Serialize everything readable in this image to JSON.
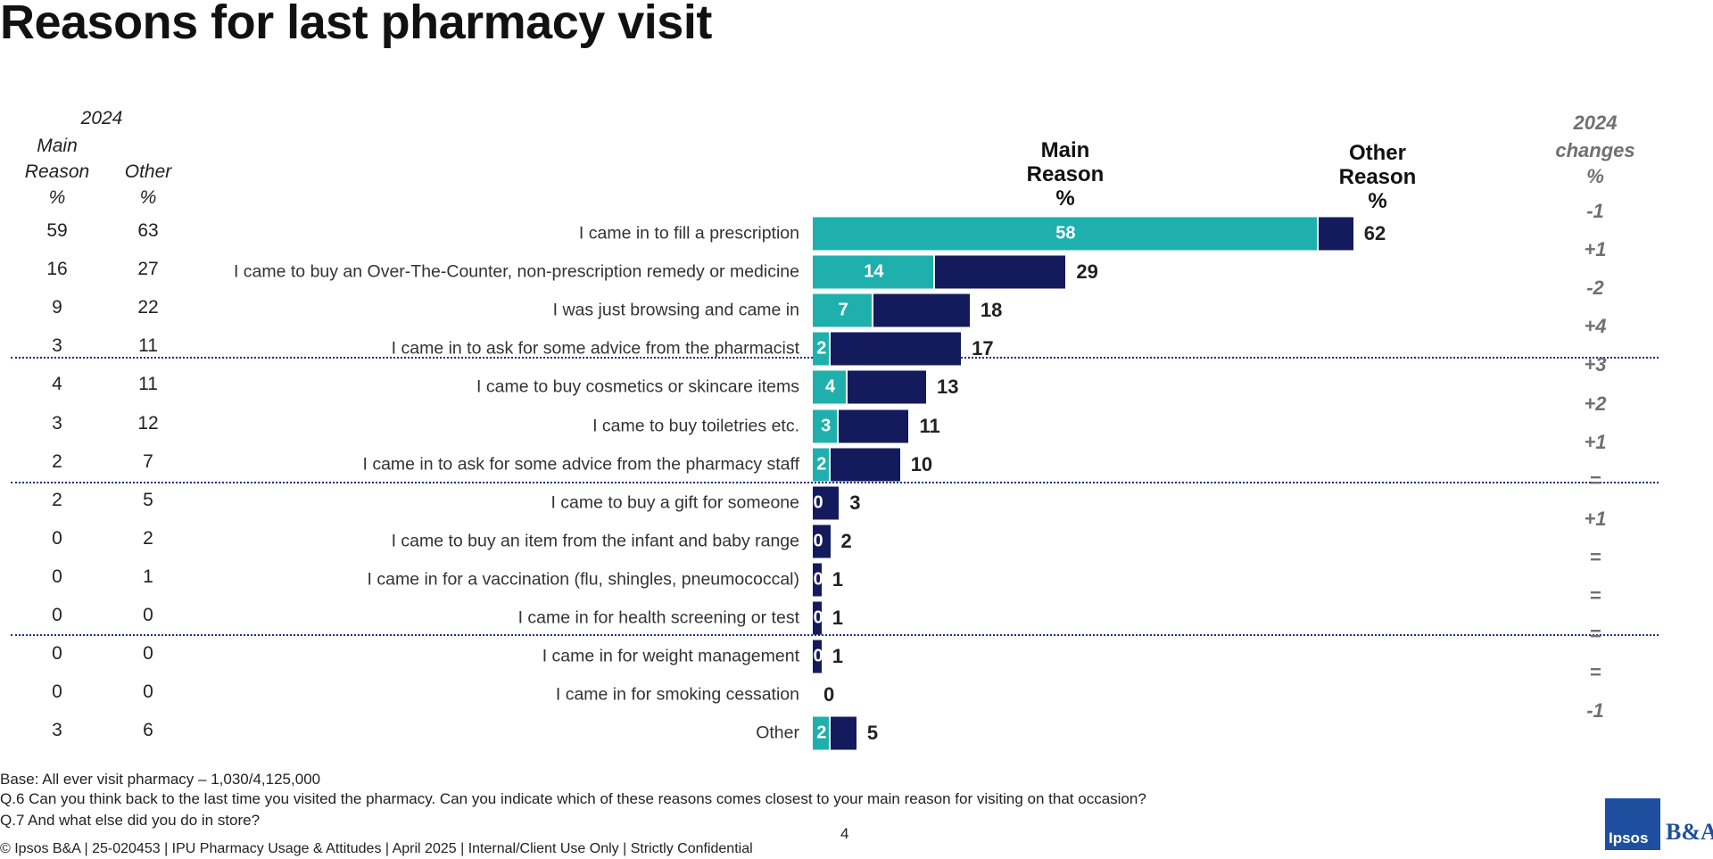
{
  "title": "Reasons for last pharmacy visit",
  "table_2024": {
    "header": "2024",
    "columns": [
      [
        "Main",
        "Reason",
        "%"
      ],
      [
        "Other",
        "%"
      ]
    ],
    "rows": [
      [
        59,
        63
      ],
      [
        16,
        27
      ],
      [
        9,
        22
      ],
      [
        3,
        11
      ],
      [
        4,
        11
      ],
      [
        3,
        12
      ],
      [
        2,
        7
      ],
      [
        2,
        5
      ],
      [
        0,
        2
      ],
      [
        0,
        1
      ],
      [
        0,
        0
      ],
      [
        0,
        0
      ],
      [
        0,
        0
      ],
      [
        3,
        6
      ]
    ]
  },
  "changes": {
    "header": [
      "2024",
      "changes",
      "%"
    ],
    "values": [
      "-1",
      "+1",
      "-2",
      "+4",
      "+3",
      "+2",
      "+1",
      "=",
      "+1",
      "=",
      "=",
      "=",
      "=",
      "-1"
    ]
  },
  "chart_data": {
    "type": "bar",
    "orientation": "horizontal",
    "unit": "%",
    "categories": [
      "I came in to fill a prescription",
      "I came to buy an Over-The-Counter, non-prescription remedy or medicine",
      "I was just browsing and came in",
      "I came in to ask for some advice from the pharmacist",
      "I came to buy cosmetics or skincare items",
      "I came to buy toiletries etc.",
      "I came in to ask for some advice from the pharmacy staff",
      "I came to buy a gift for someone",
      "I came to buy an item from the infant and baby range",
      "I came in for a vaccination (flu, shingles, pneumococcal)",
      "I came in for health screening or test",
      "I came in for weight management",
      "I came in for smoking cessation",
      "Other"
    ],
    "series": [
      {
        "name": "Main Reason",
        "color": "#1fb0ad",
        "values": [
          58,
          14,
          7,
          2,
          4,
          3,
          2,
          0,
          0,
          0,
          0,
          0,
          0,
          2
        ]
      },
      {
        "name": "Other Reason",
        "color": "#141b5c",
        "values": [
          62,
          29,
          18,
          17,
          13,
          11,
          10,
          3,
          2,
          1,
          1,
          1,
          0,
          5
        ]
      }
    ]
  },
  "footer": {
    "notes": [
      "Base: All ever visit pharmacy – 1,030/4,125,000",
      "Q.6 Can you think back to the last time you visited the pharmacy.  Can you indicate which of these reasons comes closest to your main reason for visiting on that occasion?",
      "Q.7 And what else did you do in store?"
    ],
    "copyright": "© Ipsos B&A  | 25-020453 |  IPU  Pharmacy Usage & Attitudes  | April 2025 | Internal/Client Use Only | Strictly Confidential",
    "page": "4",
    "logo": [
      "Ipsos",
      "B&A"
    ]
  }
}
